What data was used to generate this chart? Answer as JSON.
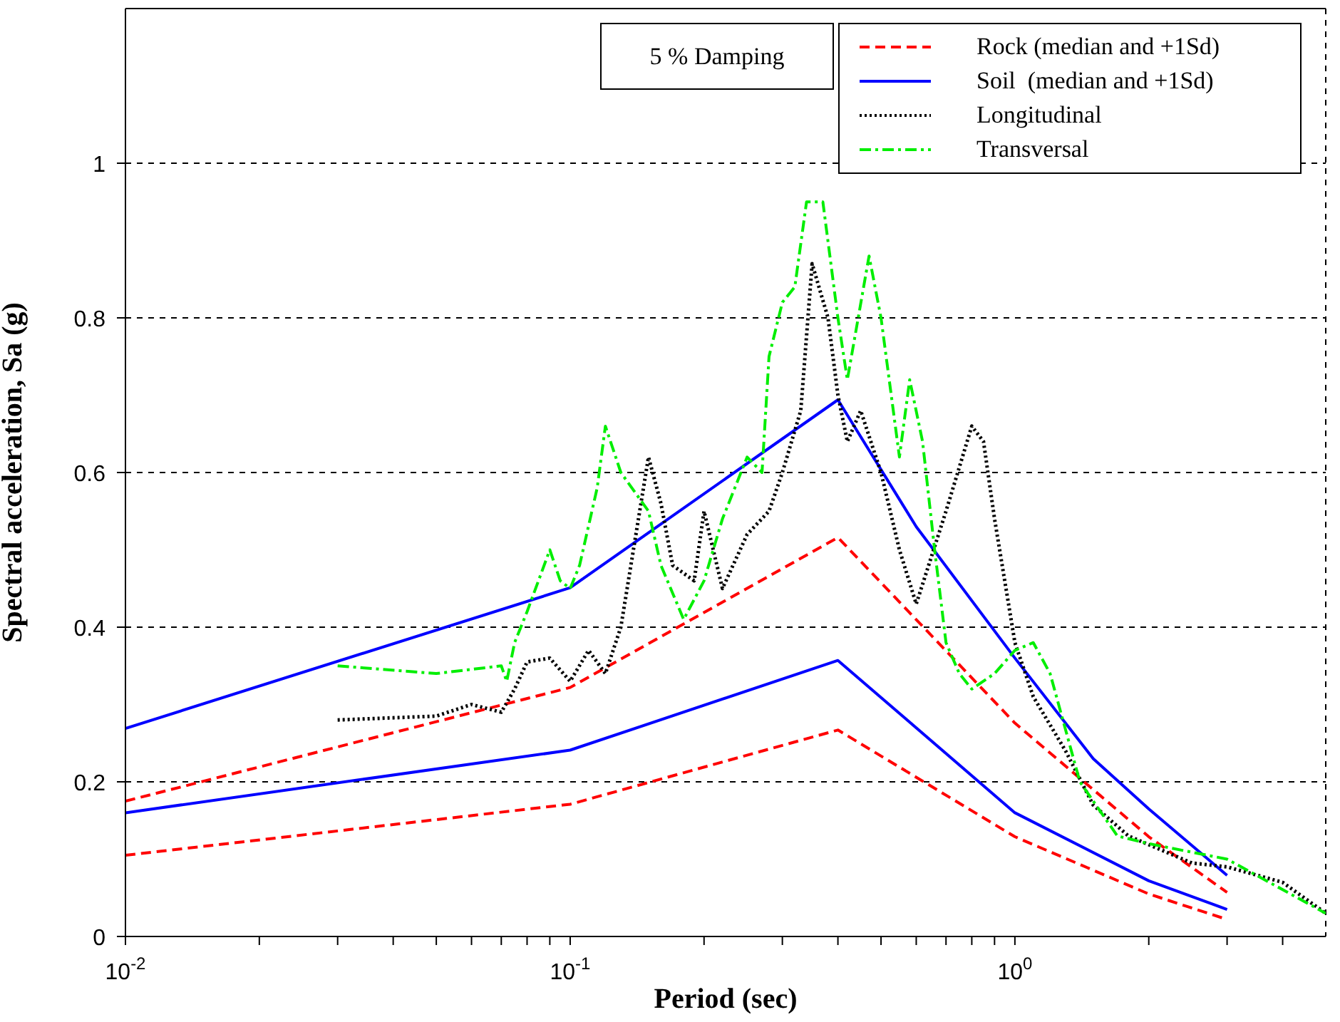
{
  "chart_data": {
    "type": "line",
    "xlabel": "Period (sec)",
    "ylabel": "Spectral acceleration, Sa (g)",
    "annotations": [
      "5 % Damping"
    ],
    "log": "x",
    "grid": true,
    "legend": "top right",
    "xlim": [
      0.01,
      5
    ],
    "xticks": [
      {
        "value": 0.01,
        "label": "10$^{-2}$"
      },
      {
        "value": 0.02,
        "label": null
      },
      {
        "value": 0.03,
        "label": null
      },
      {
        "value": 0.04,
        "label": null
      },
      {
        "value": 0.05,
        "label": null
      },
      {
        "value": 0.06,
        "label": null
      },
      {
        "value": 0.07,
        "label": null
      },
      {
        "value": 0.08,
        "label": null
      },
      {
        "value": 0.09,
        "label": null
      },
      {
        "value": 0.1,
        "label": "10$^{-1}$"
      },
      {
        "value": 0.2,
        "label": null
      },
      {
        "value": 0.3,
        "label": null
      },
      {
        "value": 0.4,
        "label": null
      },
      {
        "value": 0.5,
        "label": null
      },
      {
        "value": 0.6,
        "label": null
      },
      {
        "value": 0.7,
        "label": null
      },
      {
        "value": 0.8,
        "label": null
      },
      {
        "value": 0.9,
        "label": null
      },
      {
        "value": 1,
        "label": "10$^{0}$"
      },
      {
        "value": 2,
        "label": null
      },
      {
        "value": 3,
        "label": null
      },
      {
        "value": 4,
        "label": null
      }
    ],
    "ylim": [
      0,
      1.2
    ],
    "yticks": [
      0,
      0.2,
      0.4,
      0.6,
      0.8,
      1
    ],
    "series": [
      {
        "name": "Rock (median and +1Sd)",
        "color": "#ff0000",
        "line_style": "dashed",
        "x": [
          0.01,
          0.1,
          0.4,
          1,
          2,
          3
        ],
        "values": [
          0.175,
          0.322,
          0.516,
          0.276,
          0.129,
          0.057
        ]
      },
      {
        "color": "#ff0000",
        "line_style": "dashed",
        "x": [
          0.01,
          0.1,
          0.4,
          1,
          2,
          3
        ],
        "values": [
          0.105,
          0.171,
          0.267,
          0.129,
          0.055,
          0.022
        ]
      },
      {
        "name": "Soil  (median and +1Sd)",
        "color": "#0000ff",
        "line_style": "solid",
        "x": [
          0.01,
          0.1,
          0.4,
          0.6,
          1,
          1.5,
          2,
          3
        ],
        "values": [
          0.269,
          0.451,
          0.694,
          0.53,
          0.36,
          0.23,
          0.165,
          0.079
        ]
      },
      {
        "color": "#0000ff",
        "line_style": "solid",
        "x": [
          0.01,
          0.1,
          0.4,
          1,
          2,
          3
        ],
        "values": [
          0.16,
          0.241,
          0.357,
          0.16,
          0.072,
          0.035
        ]
      },
      {
        "name": "Longitudinal",
        "color": "#000000",
        "line_style": "dotted",
        "x": [
          0.03,
          0.05,
          0.06,
          0.07,
          0.075,
          0.08,
          0.09,
          0.1,
          0.11,
          0.12,
          0.13,
          0.15,
          0.16,
          0.17,
          0.19,
          0.2,
          0.22,
          0.25,
          0.28,
          0.3,
          0.33,
          0.35,
          0.38,
          0.4,
          0.42,
          0.45,
          0.5,
          0.55,
          0.6,
          0.7,
          0.8,
          0.85,
          0.9,
          1,
          1.1,
          1.3,
          1.5,
          1.8,
          2.5,
          3,
          4,
          5
        ],
        "values": [
          0.28,
          0.285,
          0.3,
          0.29,
          0.32,
          0.355,
          0.36,
          0.33,
          0.37,
          0.34,
          0.4,
          0.62,
          0.56,
          0.48,
          0.46,
          0.55,
          0.45,
          0.52,
          0.55,
          0.6,
          0.68,
          0.87,
          0.8,
          0.7,
          0.64,
          0.68,
          0.6,
          0.5,
          0.43,
          0.55,
          0.66,
          0.64,
          0.54,
          0.38,
          0.31,
          0.24,
          0.17,
          0.13,
          0.095,
          0.09,
          0.07,
          0.03
        ]
      },
      {
        "name": "Transversal",
        "color": "#00ee00",
        "line_style": "dashdot",
        "x": [
          0.03,
          0.05,
          0.07,
          0.072,
          0.075,
          0.08,
          0.09,
          0.095,
          0.1,
          0.105,
          0.115,
          0.12,
          0.13,
          0.15,
          0.16,
          0.18,
          0.2,
          0.22,
          0.25,
          0.27,
          0.28,
          0.3,
          0.32,
          0.34,
          0.37,
          0.4,
          0.42,
          0.47,
          0.5,
          0.55,
          0.58,
          0.62,
          0.66,
          0.7,
          0.75,
          0.8,
          0.9,
          1,
          1.1,
          1.2,
          1.4,
          1.7,
          2,
          3,
          5
        ],
        "values": [
          0.35,
          0.34,
          0.35,
          0.33,
          0.38,
          0.42,
          0.5,
          0.46,
          0.45,
          0.48,
          0.58,
          0.66,
          0.6,
          0.55,
          0.48,
          0.41,
          0.46,
          0.54,
          0.62,
          0.6,
          0.75,
          0.82,
          0.84,
          0.95,
          0.95,
          0.8,
          0.72,
          0.88,
          0.8,
          0.62,
          0.72,
          0.64,
          0.5,
          0.38,
          0.34,
          0.32,
          0.34,
          0.37,
          0.38,
          0.34,
          0.2,
          0.13,
          0.12,
          0.1,
          0.03
        ]
      }
    ]
  }
}
